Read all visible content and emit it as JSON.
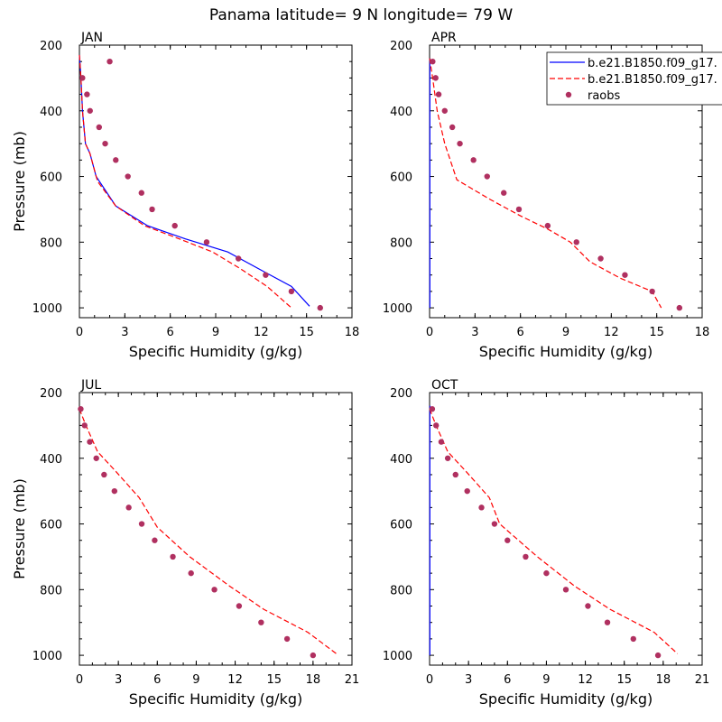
{
  "figure_title": "Panama  latitude= 9 N longitude= 79 W",
  "legend": {
    "placement": "top-right of APR panel",
    "entries": [
      {
        "label": "b.e21.B1850.f09_g17.",
        "style": "solid",
        "color": "#0000ff"
      },
      {
        "label": "b.e21.B1850.f09_g17.",
        "style": "dashed",
        "color": "#ff0000"
      },
      {
        "label": "raobs",
        "style": "dot",
        "color": "#b03060"
      }
    ]
  },
  "colors": {
    "model1": "#0000ff",
    "model2": "#ff0000",
    "raobs": "#b03060"
  },
  "chart_data": [
    {
      "type": "line",
      "title": "JAN",
      "xlabel": "Specific Humidity (g/kg)",
      "ylabel": "Pressure (mb)",
      "xlim": [
        0,
        18
      ],
      "ylim": [
        200,
        1030
      ],
      "y_reversed": true,
      "xticks": [
        0,
        3,
        6,
        9,
        12,
        15,
        18
      ],
      "yticks": [
        200,
        400,
        600,
        800,
        1000
      ],
      "series": [
        {
          "name": "b.e21.B1850.f09_g17.",
          "style": "solid",
          "color": "#0000ff",
          "x": [
            0.0,
            0.1,
            0.2,
            0.4,
            0.7,
            1.1,
            2.4,
            4.5,
            7.0,
            9.8,
            12.2,
            14.0,
            15.2
          ],
          "y": [
            230,
            300,
            400,
            500,
            530,
            600,
            690,
            750,
            790,
            830,
            890,
            935,
            995
          ]
        },
        {
          "name": "b.e21.B1850.f09_g17.",
          "style": "dashed",
          "color": "#ff0000",
          "x": [
            0.0,
            0.1,
            0.2,
            0.4,
            0.7,
            1.2,
            2.4,
            4.3,
            6.6,
            8.8,
            10.6,
            12.4,
            14.0
          ],
          "y": [
            230,
            300,
            400,
            500,
            530,
            615,
            690,
            750,
            790,
            830,
            880,
            935,
            1000
          ]
        },
        {
          "name": "raobs",
          "style": "dot",
          "color": "#b03060",
          "x": [
            2.0,
            0.2,
            0.5,
            0.7,
            1.3,
            1.7,
            2.4,
            3.2,
            4.1,
            4.8,
            6.3,
            8.4,
            10.5,
            12.3,
            14.0,
            15.9
          ],
          "y": [
            250,
            300,
            350,
            400,
            450,
            500,
            550,
            600,
            650,
            700,
            750,
            800,
            850,
            900,
            950,
            1000
          ]
        }
      ]
    },
    {
      "type": "line",
      "title": "APR",
      "xlabel": "Specific Humidity (g/kg)",
      "ylabel": "",
      "xlim": [
        0,
        18
      ],
      "ylim": [
        200,
        1030
      ],
      "y_reversed": true,
      "xticks": [
        0,
        3,
        6,
        9,
        12,
        15,
        18
      ],
      "yticks": [
        200,
        400,
        600,
        800,
        1000
      ],
      "series": [
        {
          "name": "b.e21.B1850.f09_g17.",
          "style": "solid",
          "color": "#0000ff",
          "x": [
            0.02,
            0.02
          ],
          "y": [
            240,
            1000
          ]
        },
        {
          "name": "b.e21.B1850.f09_g17.",
          "style": "dashed",
          "color": "#ff0000",
          "x": [
            0.0,
            0.2,
            0.5,
            1.0,
            1.8,
            4.0,
            6.0,
            7.8,
            9.3,
            10.6,
            12.6,
            14.7,
            15.3
          ],
          "y": [
            240,
            300,
            400,
            500,
            610,
            670,
            720,
            760,
            800,
            860,
            910,
            950,
            1000
          ]
        },
        {
          "name": "raobs",
          "style": "dot",
          "color": "#b03060",
          "x": [
            0.2,
            0.4,
            0.6,
            1.0,
            1.5,
            2.0,
            2.9,
            3.8,
            4.9,
            5.9,
            7.8,
            9.7,
            11.3,
            12.9,
            14.7,
            16.5
          ],
          "y": [
            250,
            300,
            350,
            400,
            450,
            500,
            550,
            600,
            650,
            700,
            750,
            800,
            850,
            900,
            950,
            1000
          ]
        }
      ]
    },
    {
      "type": "line",
      "title": "JUL",
      "xlabel": "Specific Humidity (g/kg)",
      "ylabel": "Pressure (mb)",
      "xlim": [
        0,
        21
      ],
      "ylim": [
        200,
        1030
      ],
      "y_reversed": true,
      "xticks": [
        0,
        3,
        6,
        9,
        12,
        15,
        18,
        21
      ],
      "yticks": [
        200,
        400,
        600,
        800,
        1000
      ],
      "series": [
        {
          "name": "b.e21.B1850.f09_g17.",
          "style": "dashed",
          "color": "#ff0000",
          "x": [
            0.0,
            0.5,
            1.4,
            2.8,
            4.6,
            6.0,
            8.5,
            11.6,
            14.2,
            17.6,
            19.8
          ],
          "y": [
            250,
            300,
            380,
            440,
            520,
            610,
            700,
            790,
            860,
            930,
            995
          ]
        },
        {
          "name": "raobs",
          "style": "dot",
          "color": "#b03060",
          "x": [
            0.1,
            0.4,
            0.8,
            1.3,
            1.9,
            2.7,
            3.8,
            4.8,
            5.8,
            7.2,
            8.6,
            10.4,
            12.3,
            14.0,
            16.0,
            18.0
          ],
          "y": [
            250,
            300,
            350,
            400,
            450,
            500,
            550,
            600,
            650,
            700,
            750,
            800,
            850,
            900,
            950,
            1000
          ]
        }
      ]
    },
    {
      "type": "line",
      "title": "OCT",
      "xlabel": "Specific Humidity (g/kg)",
      "ylabel": "",
      "xlim": [
        0,
        21
      ],
      "ylim": [
        200,
        1030
      ],
      "y_reversed": true,
      "xticks": [
        0,
        3,
        6,
        9,
        12,
        15,
        18,
        21
      ],
      "yticks": [
        200,
        400,
        600,
        800,
        1000
      ],
      "series": [
        {
          "name": "b.e21.B1850.f09_g17.",
          "style": "solid",
          "color": "#0000ff",
          "x": [
            0.02,
            0.02
          ],
          "y": [
            240,
            1000
          ]
        },
        {
          "name": "b.e21.B1850.f09_g17.",
          "style": "dashed",
          "color": "#ff0000",
          "x": [
            0.0,
            0.5,
            1.4,
            2.8,
            4.6,
            5.4,
            8.3,
            11.2,
            13.9,
            17.3,
            19.1
          ],
          "y": [
            250,
            300,
            380,
            440,
            520,
            600,
            700,
            790,
            860,
            930,
            995
          ]
        },
        {
          "name": "raobs",
          "style": "dot",
          "color": "#b03060",
          "x": [
            0.2,
            0.5,
            0.9,
            1.4,
            2.0,
            2.9,
            4.0,
            5.0,
            6.0,
            7.4,
            9.0,
            10.5,
            12.2,
            13.7,
            15.7,
            17.6
          ],
          "y": [
            250,
            300,
            350,
            400,
            450,
            500,
            550,
            600,
            650,
            700,
            750,
            800,
            850,
            900,
            950,
            1000
          ]
        }
      ]
    }
  ]
}
